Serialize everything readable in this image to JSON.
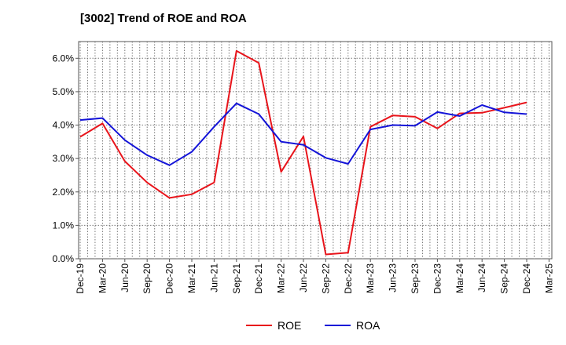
{
  "chart_data": {
    "type": "line",
    "title": "[3002]  Trend of ROE and ROA",
    "categories": [
      "Dec-19",
      "Mar-20",
      "Jun-20",
      "Sep-20",
      "Dec-20",
      "Mar-21",
      "Jun-21",
      "Sep-21",
      "Dec-21",
      "Mar-22",
      "Jun-22",
      "Sep-22",
      "Dec-22",
      "Mar-23",
      "Jun-23",
      "Sep-23",
      "Dec-23",
      "Mar-24",
      "Jun-24",
      "Sep-24",
      "Dec-24",
      "Mar-25"
    ],
    "y_ticks": [
      "0.0%",
      "1.0%",
      "2.0%",
      "3.0%",
      "4.0%",
      "5.0%",
      "6.0%"
    ],
    "ylim": [
      0,
      6.5
    ],
    "y_unit": "%",
    "grid": true,
    "legend_position": "bottom-center",
    "series": [
      {
        "name": "ROE",
        "color": "#e8141b",
        "values": [
          3.65,
          4.05,
          2.92,
          2.28,
          1.82,
          1.93,
          2.28,
          6.22,
          5.86,
          2.6,
          3.66,
          0.13,
          0.18,
          3.95,
          4.29,
          4.25,
          3.9,
          4.35,
          4.37,
          4.52,
          4.68,
          null
        ]
      },
      {
        "name": "ROA",
        "color": "#1414d8",
        "values": [
          4.15,
          4.21,
          3.55,
          3.1,
          2.8,
          3.2,
          3.95,
          4.65,
          4.33,
          3.5,
          3.41,
          3.02,
          2.84,
          3.87,
          4.0,
          3.98,
          4.39,
          4.27,
          4.6,
          4.38,
          4.33,
          null
        ]
      }
    ]
  }
}
